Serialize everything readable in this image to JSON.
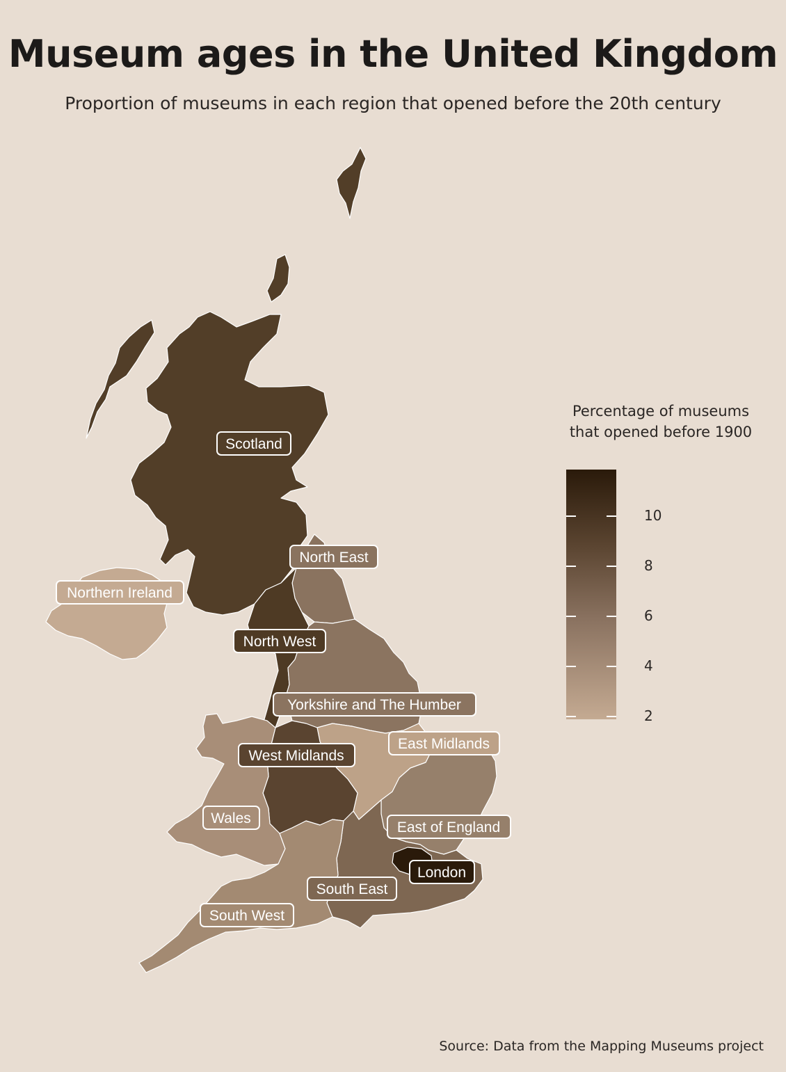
{
  "title": "Museum ages in the United Kingdom",
  "subtitle": "Proportion of museums in each region that opened before the 20th century",
  "source": "Source: Data from the Mapping Museums project",
  "legend": {
    "title_line1": "Percentage of museums",
    "title_line2": "that opened before 1900",
    "ticks": [
      "10",
      "8",
      "6",
      "4",
      "2"
    ],
    "scale_min": 1.8,
    "scale_max": 11.8
  },
  "colors": {
    "background": "#e8ddd2",
    "low": "#c4aa92",
    "high": "#2a1a0a"
  },
  "regions": [
    {
      "name": "Scotland",
      "color": "#523e28"
    },
    {
      "name": "North East",
      "color": "#8a735f"
    },
    {
      "name": "Northern Ireland",
      "color": "#c4aa92"
    },
    {
      "name": "North West",
      "color": "#4e3a24"
    },
    {
      "name": "Yorkshire and The Humber",
      "color": "#8b7460"
    },
    {
      "name": "East Midlands",
      "color": "#bda288"
    },
    {
      "name": "West Midlands",
      "color": "#5a4430"
    },
    {
      "name": "Wales",
      "color": "#a88e78"
    },
    {
      "name": "East of England",
      "color": "#96806b"
    },
    {
      "name": "London",
      "color": "#2a1a0a"
    },
    {
      "name": "South East",
      "color": "#7e6752"
    },
    {
      "name": "South West",
      "color": "#a38a72"
    }
  ]
}
